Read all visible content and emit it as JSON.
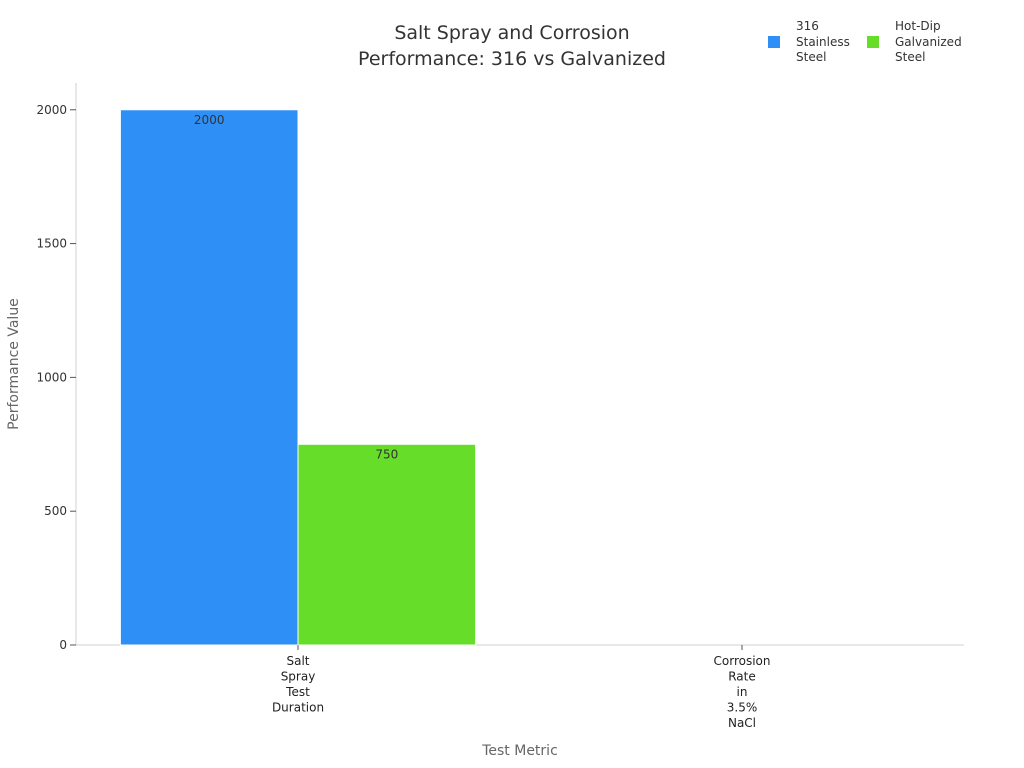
{
  "chart_data": {
    "type": "bar",
    "title": "Salt Spray and Corrosion Performance: 316 vs Galvanized",
    "title_lines": [
      "Salt Spray and Corrosion",
      "Performance: 316 vs Galvanized"
    ],
    "xlabel": "Test Metric",
    "ylabel": "Performance Value",
    "categories": [
      "Salt Spray Test Duration",
      "Corrosion Rate in 3.5% NaCl"
    ],
    "category_label_lines": [
      [
        "Salt",
        "Spray",
        "Test",
        "Duration"
      ],
      [
        "Corrosion",
        "Rate",
        "in",
        "3.5%",
        "NaCl"
      ]
    ],
    "series": [
      {
        "name": "316 Stainless Steel",
        "legend_lines": [
          "316",
          "Stainless",
          "Steel"
        ],
        "color": "#2e8ff7",
        "values": [
          2000,
          0
        ],
        "labels": [
          "2000",
          ""
        ]
      },
      {
        "name": "Hot-Dip Galvanized Steel",
        "legend_lines": [
          "Hot-Dip",
          "Galvanized",
          "Steel"
        ],
        "color": "#66dd28",
        "values": [
          750,
          0
        ],
        "labels": [
          "750",
          ""
        ]
      }
    ],
    "ylim": [
      0,
      2100
    ],
    "yticks": [
      0,
      500,
      1000,
      1500,
      2000
    ],
    "grid": false,
    "legend_position": "top-right"
  }
}
